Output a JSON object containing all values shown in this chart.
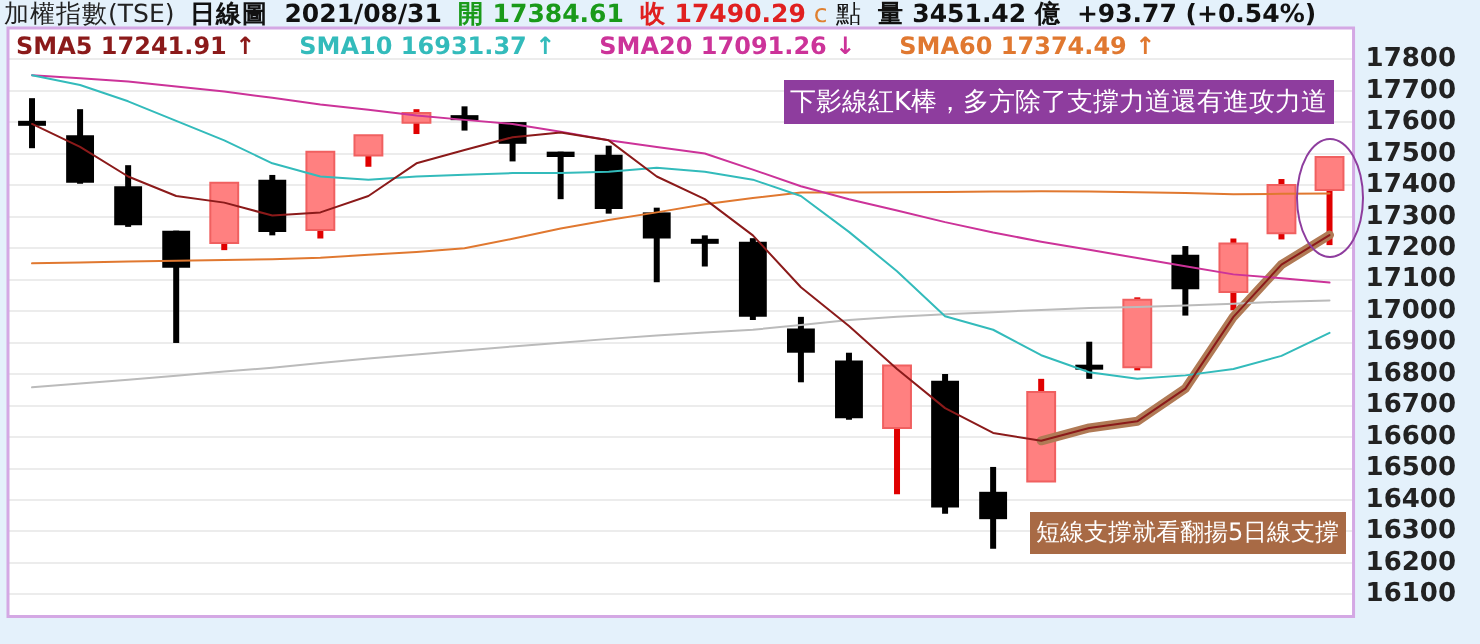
{
  "chart_data": {
    "type": "candlestick",
    "title": "加權指數(TSE)",
    "annotations": [
      "日線圖",
      "2021/08/31",
      "開 17384.61",
      "收 17490.29",
      "c",
      "點",
      "量 3451.42 億",
      "+93.77 (+0.54%)",
      "下影線紅K棒，多方除了支撐力道還有進攻力道",
      "短線支撐就看翻揚5日線支撐"
    ],
    "categories": [
      null,
      null,
      null,
      null,
      null,
      null,
      null,
      null,
      null,
      null,
      null,
      null,
      null,
      null,
      null,
      null,
      null,
      null,
      null,
      null,
      null,
      null,
      null,
      null,
      null,
      null,
      null,
      null
    ],
    "ohlc": [
      [
        17605,
        17677,
        17518,
        17590
      ],
      [
        17559,
        17642,
        17405,
        17408
      ],
      [
        17397,
        17464,
        17268,
        17273
      ],
      [
        17256,
        17256,
        16899,
        17138
      ],
      [
        17217,
        17408,
        17194,
        17408
      ],
      [
        17418,
        17433,
        17241,
        17252
      ],
      [
        17258,
        17507,
        17231,
        17507
      ],
      [
        17495,
        17559,
        17459,
        17559
      ],
      [
        17599,
        17642,
        17563,
        17630
      ],
      [
        17623,
        17651,
        17574,
        17611
      ],
      [
        17601,
        17601,
        17476,
        17532
      ],
      [
        17507,
        17507,
        17356,
        17490
      ],
      [
        17497,
        17526,
        17310,
        17325
      ],
      [
        17314,
        17329,
        17092,
        17231
      ],
      [
        17230,
        17241,
        17142,
        17222
      ],
      [
        17221,
        17232,
        16972,
        16982
      ],
      [
        16945,
        16982,
        16774,
        16868
      ],
      [
        16843,
        16868,
        16655,
        16660
      ],
      [
        16629,
        16827,
        16418,
        16827
      ],
      [
        16779,
        16800,
        16356,
        16376
      ],
      [
        16426,
        16505,
        16245,
        16339
      ],
      [
        16459,
        16785,
        16459,
        16743
      ],
      [
        16830,
        16903,
        16785,
        16823
      ],
      [
        16822,
        17044,
        16812,
        17036
      ],
      [
        17179,
        17207,
        16986,
        17070
      ],
      [
        17061,
        17231,
        17003,
        17215
      ],
      [
        17248,
        17420,
        17228,
        17401
      ],
      [
        17385,
        17490,
        17210,
        17490
      ]
    ],
    "series": [
      {
        "name": "SMA5 17241.91 ↑",
        "type": "line",
        "color": "#8b1a1a",
        "values": [
          17595,
          17522,
          17428,
          17366,
          17345,
          17304,
          17314,
          17366,
          17470,
          17512,
          17553,
          17568,
          17543,
          17428,
          17356,
          17241,
          17076,
          16953,
          16816,
          16692,
          16613,
          16588,
          16629,
          16650,
          16754,
          16982,
          17148,
          17242
        ]
      },
      {
        "name": "SMA10 16931.37 ↑",
        "type": "line",
        "color": "#33bbbb",
        "values": [
          17750,
          17719,
          17667,
          17605,
          17543,
          17470,
          17428,
          17418,
          17428,
          17434,
          17439,
          17439,
          17443,
          17456,
          17443,
          17418,
          17366,
          17252,
          17127,
          16984,
          16941,
          16860,
          16806,
          16785,
          16796,
          16816,
          16858,
          16931
        ]
      },
      {
        "name": "SMA20 17091.26 ↓",
        "type": "line",
        "color": "#cc3399",
        "values": [
          17750,
          17740,
          17730,
          17714,
          17698,
          17678,
          17657,
          17640,
          17622,
          17608,
          17595,
          17570,
          17543,
          17522,
          17501,
          17450,
          17397,
          17356,
          17320,
          17283,
          17250,
          17221,
          17195,
          17169,
          17143,
          17117,
          17105,
          17091
        ]
      },
      {
        "name": "SMA60 17374.49 ↑",
        "type": "line",
        "color": "#e07830",
        "values": [
          17152,
          17155,
          17158,
          17160,
          17163,
          17165,
          17170,
          17179,
          17188,
          17200,
          17230,
          17263,
          17290,
          17314,
          17340,
          17360,
          17377,
          17377,
          17378,
          17379,
          17380,
          17381,
          17380,
          17378,
          17376,
          17372,
          17373,
          17374
        ]
      },
      {
        "type": "line",
        "color": "#bbbbbb",
        "values": [
          16758,
          16770,
          16782,
          16795,
          16808,
          16820,
          16835,
          16850,
          16862,
          16875,
          16888,
          16900,
          16912,
          16923,
          16932,
          16941,
          16956,
          16972,
          16982,
          16990,
          16997,
          17004,
          17010,
          17013,
          17018,
          17024,
          17030,
          17034
        ]
      },
      {
        "type": "line",
        "color": "#b07a55",
        "values": [
          null,
          null,
          null,
          null,
          null,
          null,
          null,
          null,
          null,
          null,
          null,
          null,
          null,
          null,
          null,
          null,
          null,
          null,
          null,
          null,
          null,
          16588,
          16629,
          16650,
          16754,
          16982,
          17148,
          17242
        ]
      }
    ],
    "ylim": [
      16030,
      17900
    ],
    "yticks": [
      16100,
      16200,
      16300,
      16400,
      16500,
      16600,
      16700,
      16800,
      16900,
      17000,
      17100,
      17200,
      17300,
      17400,
      17500,
      17600,
      17700,
      17800
    ],
    "grid": "y",
    "legend": "top left",
    "tick_labels": "y"
  }
}
